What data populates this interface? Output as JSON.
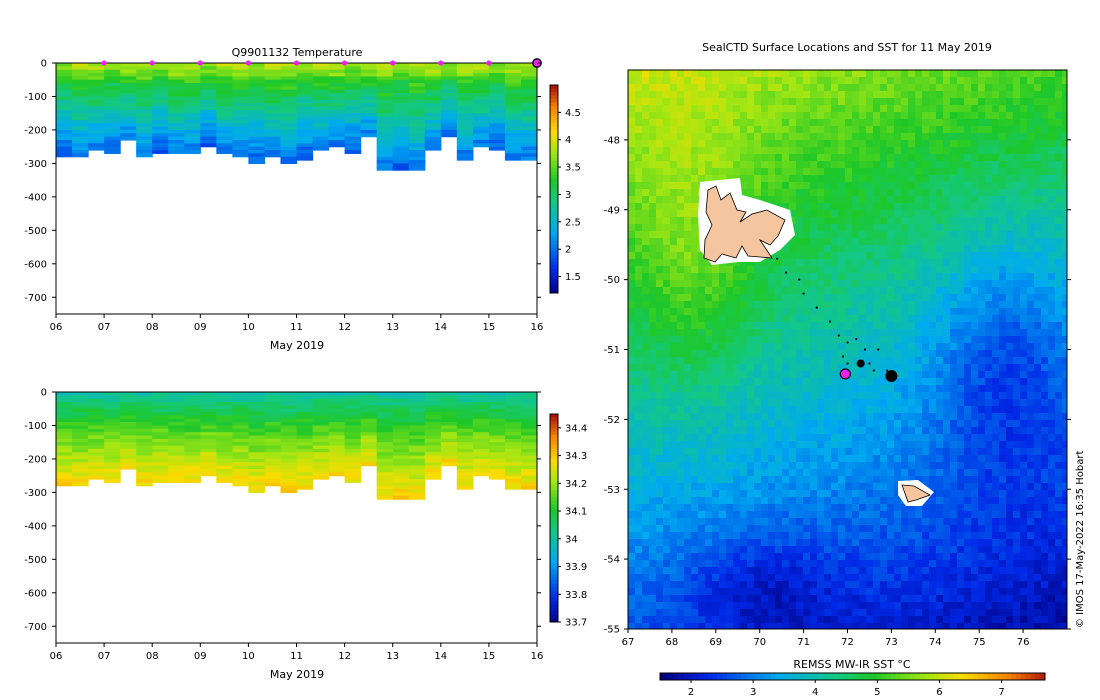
{
  "chart_data": [
    {
      "type": "heatmap",
      "title": "Q9901132  Temperature",
      "xlabel": "May 2019",
      "x_ticks": [
        "06",
        "07",
        "08",
        "09",
        "10",
        "11",
        "12",
        "13",
        "14",
        "15",
        "16"
      ],
      "x_range": [
        6,
        16
      ],
      "y_ticks": [
        0,
        -100,
        -200,
        -300,
        -400,
        -500,
        -600,
        -700
      ],
      "ylim": [
        -750,
        0
      ],
      "colorbar": {
        "ticks": [
          "1.5",
          "2",
          "2.5",
          "3",
          "3.5",
          "4",
          "4.5"
        ],
        "range": [
          1.2,
          5.0
        ]
      },
      "profile_depths": [
        -280,
        -280,
        -260,
        -270,
        -230,
        -280,
        -270,
        -270,
        -270,
        -250,
        -270,
        -280,
        -300,
        -280,
        -300,
        -290,
        -260,
        -250,
        -270,
        -220,
        -320,
        -320,
        -320,
        -260,
        -220,
        -290,
        -250,
        -260,
        -290,
        -290
      ],
      "surface_markers_day": [
        7,
        8,
        9,
        10,
        11,
        12,
        13,
        14,
        15
      ]
    },
    {
      "type": "heatmap",
      "title": "",
      "xlabel": "May 2019",
      "x_ticks": [
        "06",
        "07",
        "08",
        "09",
        "10",
        "11",
        "12",
        "13",
        "14",
        "15",
        "16"
      ],
      "x_range": [
        6,
        16
      ],
      "y_ticks": [
        0,
        -100,
        -200,
        -300,
        -400,
        -500,
        -600,
        -700
      ],
      "ylim": [
        -750,
        0
      ],
      "colorbar": {
        "ticks": [
          "33.7",
          "33.8",
          "33.9",
          "34",
          "34.1",
          "34.2",
          "34.3",
          "34.4"
        ],
        "range": [
          33.7,
          34.45
        ]
      },
      "profile_depths": [
        -280,
        -280,
        -260,
        -270,
        -230,
        -280,
        -270,
        -270,
        -270,
        -250,
        -270,
        -280,
        -300,
        -280,
        -300,
        -290,
        -260,
        -250,
        -270,
        -220,
        -320,
        -320,
        -320,
        -260,
        -220,
        -290,
        -250,
        -260,
        -290,
        -290
      ]
    },
    {
      "type": "heatmap",
      "title": "SealCTD Surface Locations and SST for 11 May 2019",
      "x_ticks": [
        "67",
        "68",
        "69",
        "70",
        "71",
        "72",
        "73",
        "74",
        "75",
        "76"
      ],
      "xlim": [
        67,
        77
      ],
      "y_ticks": [
        "-48",
        "-49",
        "-50",
        "-51",
        "-52",
        "-53",
        "-54",
        "-55"
      ],
      "ylim": [
        -55,
        -47
      ],
      "colorbar": {
        "label": "REMSS MW-IR SST °C",
        "ticks": [
          "2",
          "3",
          "4",
          "5",
          "6",
          "7"
        ],
        "range": [
          1.5,
          7.7
        ]
      },
      "seal_track_points": [
        [
          70.4,
          -49.7
        ],
        [
          70.6,
          -49.9
        ],
        [
          70.9,
          -50.0
        ],
        [
          71.0,
          -50.2
        ],
        [
          71.3,
          -50.4
        ],
        [
          71.6,
          -50.6
        ],
        [
          71.8,
          -50.8
        ],
        [
          72.0,
          -50.9
        ],
        [
          72.2,
          -50.85
        ],
        [
          72.4,
          -51.0
        ],
        [
          72.7,
          -51.0
        ],
        [
          71.9,
          -51.1
        ],
        [
          72.0,
          -51.2
        ],
        [
          72.5,
          -51.2
        ],
        [
          72.6,
          -51.3
        ],
        [
          72.9,
          -51.3
        ]
      ],
      "current_location": [
        71.95,
        -51.35
      ]
    }
  ],
  "credit": "© IMOS 17-May-2022 16:35 Hobart"
}
